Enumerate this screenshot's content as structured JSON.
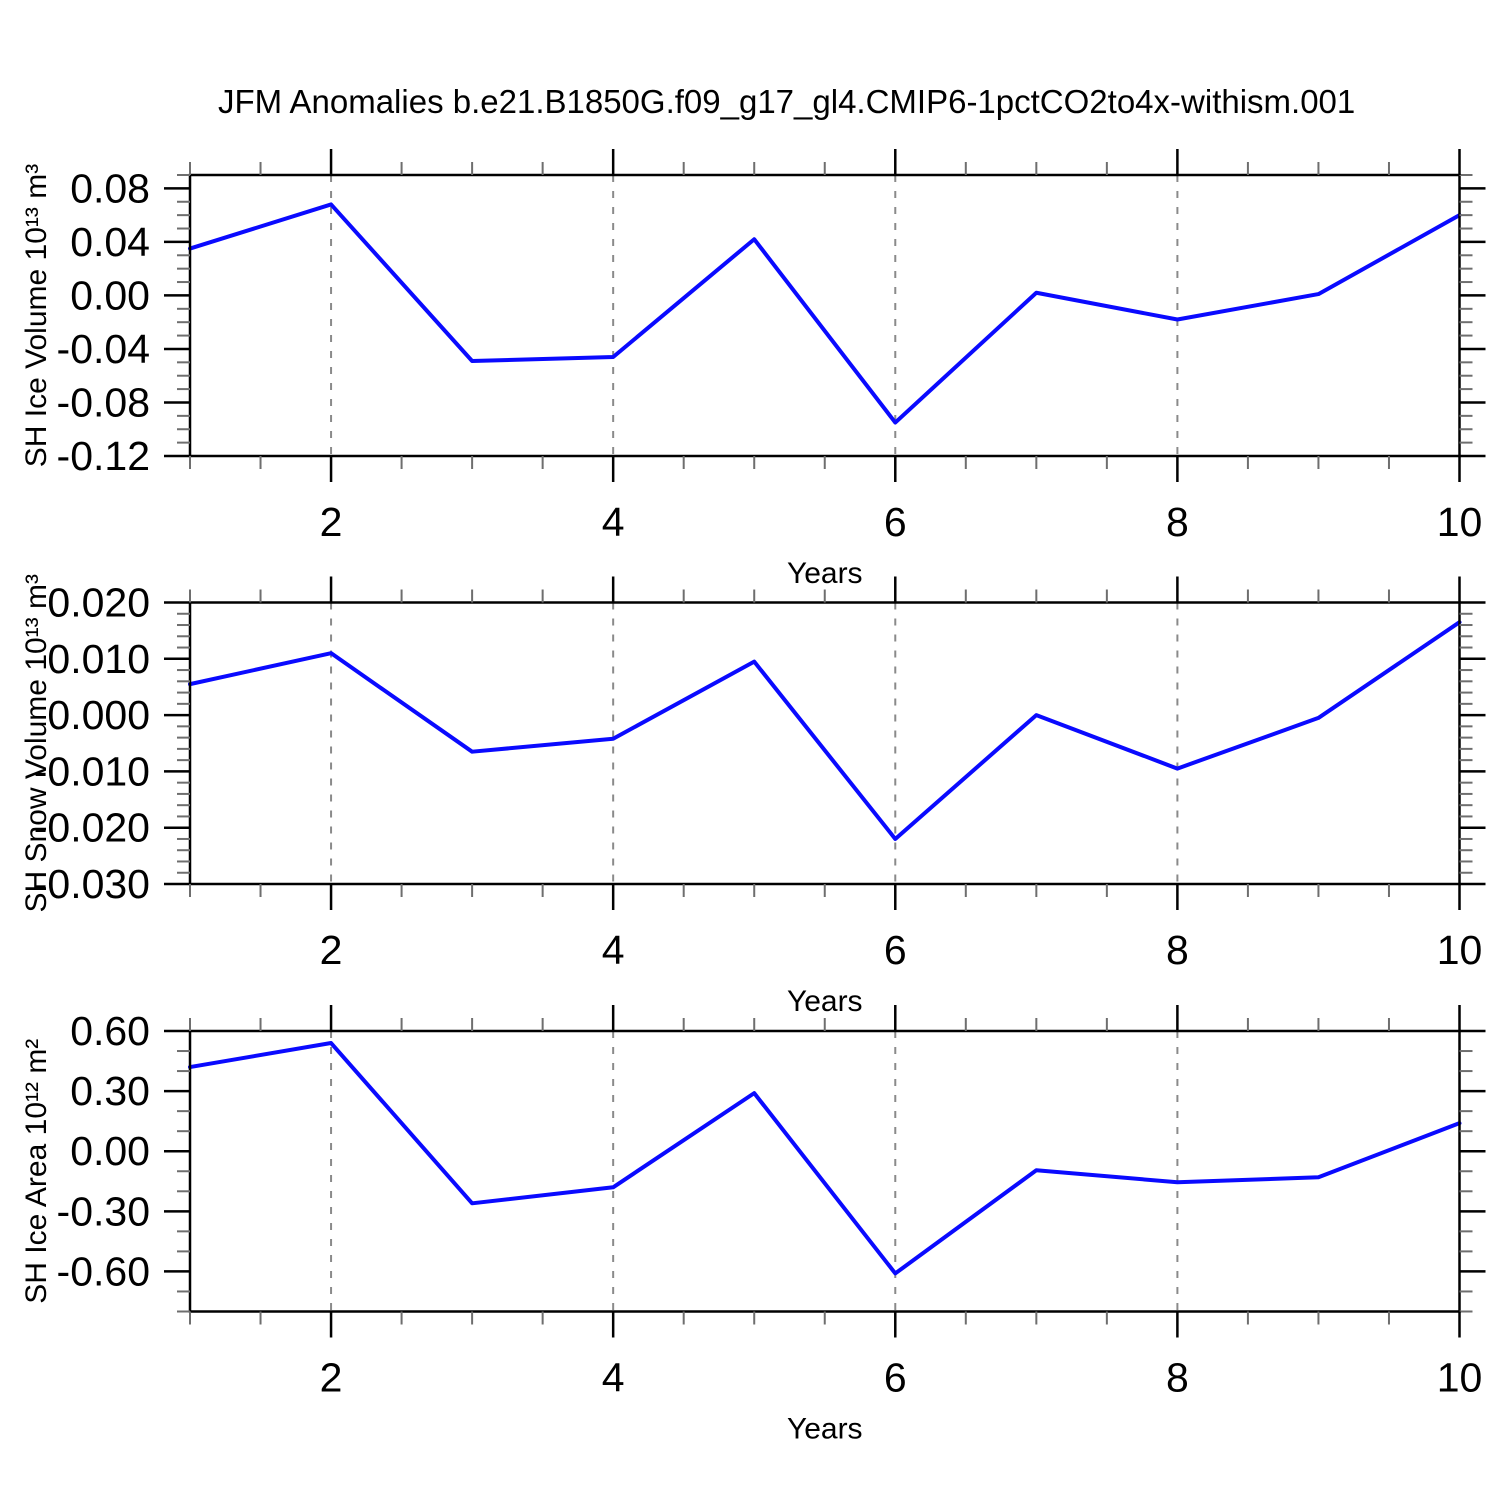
{
  "title": "JFM Anomalies b.e21.B1850G.f09_g17_gl4.CMIP6-1pctCO2to4x-withism.001",
  "axis": {
    "xlabel": "Years",
    "xlim": [
      1,
      10
    ],
    "x_minor_step": 0.5,
    "x_major": [
      {
        "v": 2,
        "label": "2"
      },
      {
        "v": 4,
        "label": "4"
      },
      {
        "v": 6,
        "label": "6"
      },
      {
        "v": 8,
        "label": "8"
      },
      {
        "v": 10,
        "label": "10"
      }
    ],
    "grid_x": [
      2,
      4,
      6,
      8
    ]
  },
  "style": {
    "line_color": "#0a0aff",
    "grid_color": "#8a8a8a",
    "frame_color": "#000000",
    "major_tick_color": "#000000",
    "minor_tick_color": "#6e6e6e",
    "text_color": "#000000",
    "background": "#ffffff"
  },
  "chart_data": [
    {
      "type": "line",
      "name": "SH Ice Volume",
      "ylabel": "SH Ice Volume 10¹³ m³",
      "xlabel": "Years",
      "x": [
        1,
        2,
        3,
        4,
        5,
        6,
        7,
        8,
        9,
        10
      ],
      "values": [
        0.035,
        0.068,
        -0.049,
        -0.046,
        0.042,
        -0.095,
        0.002,
        -0.018,
        0.001,
        0.06
      ],
      "ylim": [
        -0.12,
        0.09
      ],
      "y_minor_step": 0.01,
      "y_major": [
        {
          "v": 0.08,
          "label": "0.08"
        },
        {
          "v": 0.04,
          "label": "0.04"
        },
        {
          "v": 0.0,
          "label": "0.00"
        },
        {
          "v": -0.04,
          "label": "-0.04"
        },
        {
          "v": -0.08,
          "label": "-0.08"
        },
        {
          "v": -0.12,
          "label": "-0.12"
        }
      ]
    },
    {
      "type": "line",
      "name": "SH Snow Volume",
      "ylabel": "SH Snow Volume 10¹³ m³",
      "xlabel": "Years",
      "x": [
        1,
        2,
        3,
        4,
        5,
        6,
        7,
        8,
        9,
        10
      ],
      "values": [
        0.0055,
        0.011,
        -0.0065,
        -0.0042,
        0.0095,
        -0.022,
        0.0,
        -0.0095,
        -0.0005,
        0.0165
      ],
      "ylim": [
        -0.03,
        0.02
      ],
      "y_minor_step": 0.002,
      "y_major": [
        {
          "v": 0.02,
          "label": "0.020"
        },
        {
          "v": 0.01,
          "label": "0.010"
        },
        {
          "v": 0.0,
          "label": "0.000"
        },
        {
          "v": -0.01,
          "label": "-0.010"
        },
        {
          "v": -0.02,
          "label": "-0.020"
        },
        {
          "v": -0.03,
          "label": "-0.030"
        }
      ]
    },
    {
      "type": "line",
      "name": "SH Ice Area",
      "ylabel": "SH Ice Area 10¹² m²",
      "xlabel": "Years",
      "x": [
        1,
        2,
        3,
        4,
        5,
        6,
        7,
        8,
        9,
        10
      ],
      "values": [
        0.42,
        0.54,
        -0.26,
        -0.18,
        0.29,
        -0.61,
        -0.095,
        -0.155,
        -0.13,
        0.14
      ],
      "ylim": [
        -0.8,
        0.6
      ],
      "y_minor_step": 0.1,
      "y_major": [
        {
          "v": 0.6,
          "label": "0.60"
        },
        {
          "v": 0.3,
          "label": "0.30"
        },
        {
          "v": 0.0,
          "label": "0.00"
        },
        {
          "v": -0.3,
          "label": "-0.30"
        },
        {
          "v": -0.6,
          "label": "-0.60"
        }
      ]
    }
  ]
}
